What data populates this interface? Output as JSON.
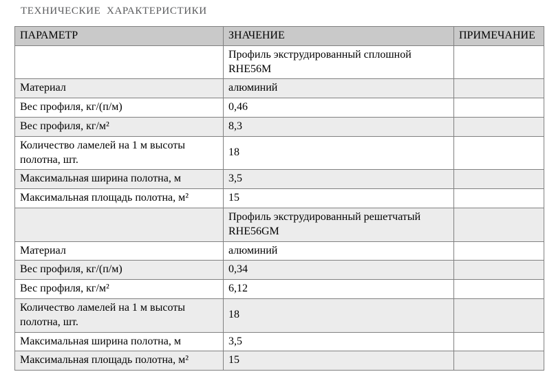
{
  "page": {
    "title": "ТЕХНИЧЕСКИЕ  ХАРАКТЕРИСТИКИ"
  },
  "colors": {
    "header_bg": "#c9c9c9",
    "stripe_bg": "#ececec",
    "border": "#808080",
    "title": "#595a5c"
  },
  "table": {
    "columns": [
      "ПАРАМЕТР",
      "ЗНАЧЕНИЕ",
      "ПРИМЕЧАНИЕ"
    ],
    "rows": [
      {
        "param": "",
        "value": "Профиль экструдированный сплошной RHE56M",
        "note": ""
      },
      {
        "param": "Материал",
        "value": "алюминий",
        "note": ""
      },
      {
        "param": "Вес профиля, кг/(п/м)",
        "value": "0,46",
        "note": ""
      },
      {
        "param": "Вес профиля, кг/м²",
        "value": "8,3",
        "note": ""
      },
      {
        "param": "Количество ламелей на 1 м высоты полотна, шт.",
        "value": "18",
        "note": ""
      },
      {
        "param": "Максимальная ширина полотна, м",
        "value": "3,5",
        "note": ""
      },
      {
        "param": "Максимальная площадь полотна, м²",
        "value": "15",
        "note": ""
      },
      {
        "param": "",
        "value": "Профиль экструдированный решетчатый RHE56GM",
        "note": ""
      },
      {
        "param": "Материал",
        "value": "алюминий",
        "note": ""
      },
      {
        "param": "Вес профиля, кг/(п/м)",
        "value": "0,34",
        "note": ""
      },
      {
        "param": "Вес профиля, кг/м²",
        "value": "6,12",
        "note": ""
      },
      {
        "param": "Количество ламелей на 1 м высоты полотна, шт.",
        "value": "18",
        "note": ""
      },
      {
        "param": "Максимальная ширина полотна, м",
        "value": "3,5",
        "note": ""
      },
      {
        "param": "Максимальная площадь полотна, м²",
        "value": "15",
        "note": ""
      }
    ]
  }
}
